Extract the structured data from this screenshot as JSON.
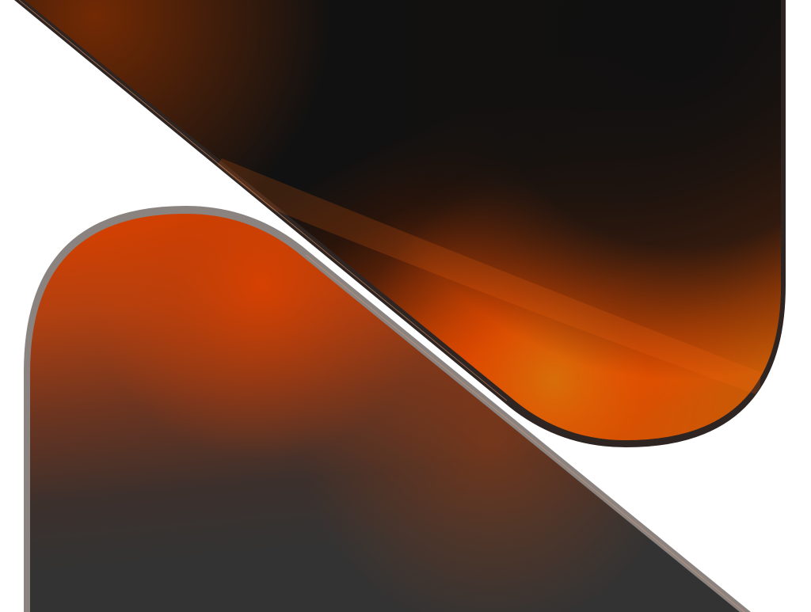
{
  "artwork": {
    "colors": {
      "background": "#ffffff",
      "upper_dark": "#111111",
      "upper_orange": "#e04a00",
      "upper_glow": "#d86a08",
      "upper_border": "#2e2421",
      "lower_dark": "#333333",
      "lower_orange": "#d94100",
      "lower_border": "#8a8380",
      "edge_highlight": "#f0a070"
    }
  }
}
